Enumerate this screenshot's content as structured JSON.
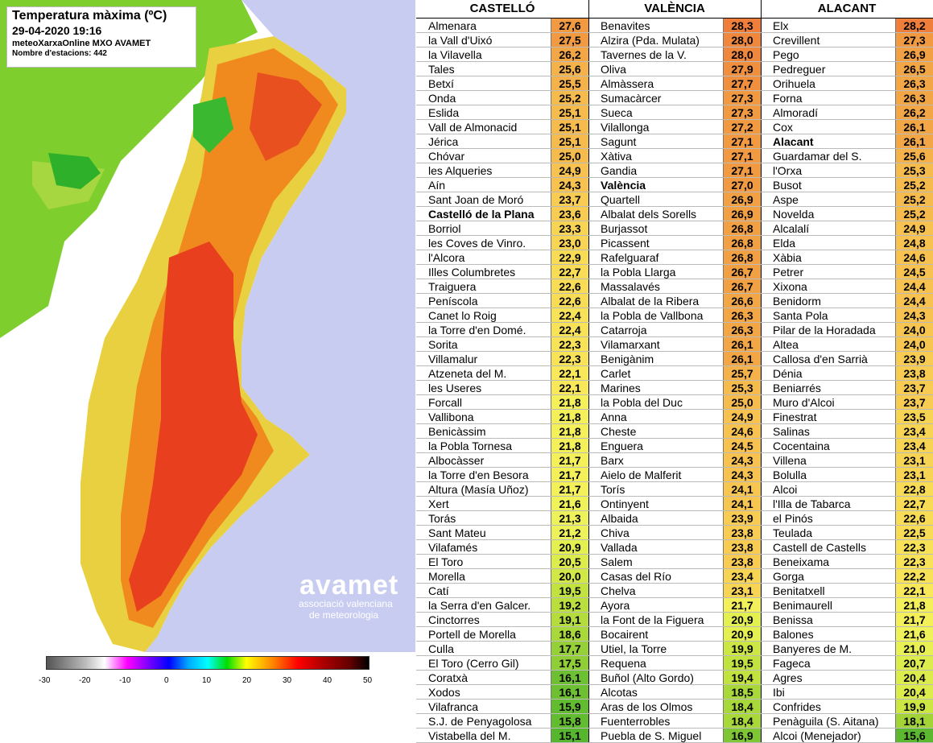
{
  "map": {
    "title": "Temperatura màxima (ºC)",
    "datetime": "29-04-2020 19:16",
    "source": "meteoXarxaOnline MXO AVAMET",
    "stations": "Nombre d'estacions: 442",
    "logo": {
      "word": "avamet",
      "sub1": "associació valenciana",
      "sub2": "de meteorologia"
    },
    "scale": {
      "ticks": [
        "-30",
        "-20",
        "-10",
        "0",
        "10",
        "20",
        "30",
        "40",
        "50"
      ]
    },
    "colors": {
      "hot": "#e8401e",
      "warm": "#f08a1e",
      "mild": "#f5c81e",
      "cool": "#8ed61e",
      "cold": "#22b022",
      "sea": "#c8ccf0"
    }
  },
  "table": {
    "columns": [
      {
        "header": "CASTELLÓ",
        "rows": [
          {
            "name": "Almenara",
            "value": "27,6",
            "color": "#f19a42"
          },
          {
            "name": "la Vall d'Uixó",
            "value": "27,5",
            "color": "#f19a42"
          },
          {
            "name": "la Vilavella",
            "value": "26,2",
            "color": "#f3a646"
          },
          {
            "name": "Tales",
            "value": "25,6",
            "color": "#f5b24a"
          },
          {
            "name": "Betxí",
            "value": "25,5",
            "color": "#f5b24a"
          },
          {
            "name": "Onda",
            "value": "25,2",
            "color": "#f6bb4d"
          },
          {
            "name": "Eslida",
            "value": "25,1",
            "color": "#f6bb4d"
          },
          {
            "name": "Vall de Almonacid",
            "value": "25,1",
            "color": "#f6bb4d"
          },
          {
            "name": "Jérica",
            "value": "25,1",
            "color": "#f6bb4d"
          },
          {
            "name": "Chóvar",
            "value": "25,0",
            "color": "#f6bb4d"
          },
          {
            "name": "les Alqueries",
            "value": "24,9",
            "color": "#f7c24f"
          },
          {
            "name": "Aín",
            "value": "24,3",
            "color": "#f7c24f"
          },
          {
            "name": "Sant Joan de Moró",
            "value": "23,7",
            "color": "#f8cc52"
          },
          {
            "name": "Castelló de la Plana",
            "value": "23,6",
            "color": "#f8cc52",
            "bold": true
          },
          {
            "name": "Borriol",
            "value": "23,3",
            "color": "#f8d455"
          },
          {
            "name": "les Coves de Vinro.",
            "value": "23,0",
            "color": "#f8d455"
          },
          {
            "name": "l'Alcora",
            "value": "22,9",
            "color": "#f8dc56"
          },
          {
            "name": "Illes Columbretes",
            "value": "22,7",
            "color": "#f8dc56"
          },
          {
            "name": "Traiguera",
            "value": "22,6",
            "color": "#f8dc56"
          },
          {
            "name": "Peníscola",
            "value": "22,6",
            "color": "#f8dc56"
          },
          {
            "name": "Canet lo Roig",
            "value": "22,4",
            "color": "#f8e258"
          },
          {
            "name": "la Torre d'en Domé.",
            "value": "22,4",
            "color": "#f8e258"
          },
          {
            "name": "Sorita",
            "value": "22,3",
            "color": "#f8e258"
          },
          {
            "name": "Villamalur",
            "value": "22,3",
            "color": "#f8e258"
          },
          {
            "name": "Atzeneta del M.",
            "value": "22,1",
            "color": "#f8e85a"
          },
          {
            "name": "les Useres",
            "value": "22,1",
            "color": "#f8e85a"
          },
          {
            "name": "Forcall",
            "value": "21,8",
            "color": "#f4f05a"
          },
          {
            "name": "Vallibona",
            "value": "21,8",
            "color": "#f4f05a"
          },
          {
            "name": "Benicàssim",
            "value": "21,8",
            "color": "#f4f05a"
          },
          {
            "name": "la Pobla Tornesa",
            "value": "21,8",
            "color": "#f4f05a"
          },
          {
            "name": "Albocàsser",
            "value": "21,7",
            "color": "#f4f05a"
          },
          {
            "name": "la Torre d'en Besora",
            "value": "21,7",
            "color": "#f4f05a"
          },
          {
            "name": "Altura (Masía Uñoz)",
            "value": "21,7",
            "color": "#f4f05a"
          },
          {
            "name": "Xert",
            "value": "21,6",
            "color": "#f0f25a"
          },
          {
            "name": "Torás",
            "value": "21,3",
            "color": "#eef25a"
          },
          {
            "name": "Sant Mateu",
            "value": "21,2",
            "color": "#eef25a"
          },
          {
            "name": "Vilafamés",
            "value": "20,9",
            "color": "#e4ef50"
          },
          {
            "name": "El Toro",
            "value": "20,5",
            "color": "#dcec4c"
          },
          {
            "name": "Morella",
            "value": "20,0",
            "color": "#d2e846"
          },
          {
            "name": "Catí",
            "value": "19,5",
            "color": "#c2e240"
          },
          {
            "name": "la Serra d'en Galcer.",
            "value": "19,2",
            "color": "#bade3e"
          },
          {
            "name": "Cinctorres",
            "value": "19,1",
            "color": "#b4dc3c"
          },
          {
            "name": "Portell de Morella",
            "value": "18,6",
            "color": "#a8d83a"
          },
          {
            "name": "Culla",
            "value": "17,7",
            "color": "#96d038"
          },
          {
            "name": "El Toro (Cerro Gil)",
            "value": "17,5",
            "color": "#90ce36"
          },
          {
            "name": "Coratxà",
            "value": "16,1",
            "color": "#6cc032"
          },
          {
            "name": "Xodos",
            "value": "16,1",
            "color": "#6cc032"
          },
          {
            "name": "Vilafranca",
            "value": "15,9",
            "color": "#62bc30"
          },
          {
            "name": "S.J. de Penyagolosa",
            "value": "15,8",
            "color": "#62bc30"
          },
          {
            "name": "Vistabella del M.",
            "value": "15,1",
            "color": "#56b62e"
          }
        ]
      },
      {
        "header": "VALÈNCIA",
        "rows": [
          {
            "name": "Benavites",
            "value": "28,3",
            "color": "#ee7e3a"
          },
          {
            "name": "Alzira (Pda. Mulata)",
            "value": "28,0",
            "color": "#ef873c"
          },
          {
            "name": "Tavernes de la V.",
            "value": "28,0",
            "color": "#ef873c"
          },
          {
            "name": "Oliva",
            "value": "27,9",
            "color": "#f0903e"
          },
          {
            "name": "Almàssera",
            "value": "27,7",
            "color": "#f0903e"
          },
          {
            "name": "Sumacàrcer",
            "value": "27,3",
            "color": "#f19a42"
          },
          {
            "name": "Sueca",
            "value": "27,3",
            "color": "#f19a42"
          },
          {
            "name": "Vilallonga",
            "value": "27,2",
            "color": "#f19a42"
          },
          {
            "name": "Sagunt",
            "value": "27,1",
            "color": "#f19a42"
          },
          {
            "name": "Xàtiva",
            "value": "27,1",
            "color": "#f19a42"
          },
          {
            "name": "Gandia",
            "value": "27,1",
            "color": "#f19a42"
          },
          {
            "name": "València",
            "value": "27,0",
            "color": "#f19a42",
            "bold": true
          },
          {
            "name": "Quartell",
            "value": "26,9",
            "color": "#f2a044"
          },
          {
            "name": "Albalat dels Sorells",
            "value": "26,9",
            "color": "#f2a044"
          },
          {
            "name": "Burjassot",
            "value": "26,8",
            "color": "#f2a044"
          },
          {
            "name": "Picassent",
            "value": "26,8",
            "color": "#f2a044"
          },
          {
            "name": "Rafelguaraf",
            "value": "26,8",
            "color": "#f2a044"
          },
          {
            "name": "la Pobla Llarga",
            "value": "26,7",
            "color": "#f2a044"
          },
          {
            "name": "Massalavés",
            "value": "26,7",
            "color": "#f2a044"
          },
          {
            "name": "Albalat de la Ribera",
            "value": "26,6",
            "color": "#f3a646"
          },
          {
            "name": "la Pobla de Vallbona",
            "value": "26,3",
            "color": "#f3a646"
          },
          {
            "name": "Catarroja",
            "value": "26,3",
            "color": "#f3a646"
          },
          {
            "name": "Vilamarxant",
            "value": "26,1",
            "color": "#f3a646"
          },
          {
            "name": "Benigànim",
            "value": "26,1",
            "color": "#f3a646"
          },
          {
            "name": "Carlet",
            "value": "25,7",
            "color": "#f5b24a"
          },
          {
            "name": "Marines",
            "value": "25,3",
            "color": "#f6bb4d"
          },
          {
            "name": "la Pobla del Duc",
            "value": "25,0",
            "color": "#f6bb4d"
          },
          {
            "name": "Anna",
            "value": "24,9",
            "color": "#f7c24f"
          },
          {
            "name": "Cheste",
            "value": "24,6",
            "color": "#f7c24f"
          },
          {
            "name": "Enguera",
            "value": "24,5",
            "color": "#f7c24f"
          },
          {
            "name": "Barx",
            "value": "24,3",
            "color": "#f7c24f"
          },
          {
            "name": "Aielo de Malferit",
            "value": "24,3",
            "color": "#f7c24f"
          },
          {
            "name": "Torís",
            "value": "24,1",
            "color": "#f7c651"
          },
          {
            "name": "Ontinyent",
            "value": "24,1",
            "color": "#f7c651"
          },
          {
            "name": "Albaida",
            "value": "23,9",
            "color": "#f8cc52"
          },
          {
            "name": "Chiva",
            "value": "23,8",
            "color": "#f8cc52"
          },
          {
            "name": "Vallada",
            "value": "23,8",
            "color": "#f8cc52"
          },
          {
            "name": "Salem",
            "value": "23,8",
            "color": "#f8cc52"
          },
          {
            "name": "Casas del Río",
            "value": "23,4",
            "color": "#f8d455"
          },
          {
            "name": "Chelva",
            "value": "23,1",
            "color": "#f8d455"
          },
          {
            "name": "Ayora",
            "value": "21,7",
            "color": "#f4f05a"
          },
          {
            "name": "la Font de la Figuera",
            "value": "20,9",
            "color": "#e4ef50"
          },
          {
            "name": "Bocairent",
            "value": "20,9",
            "color": "#e4ef50"
          },
          {
            "name": "Utiel, la Torre",
            "value": "19,9",
            "color": "#cce644"
          },
          {
            "name": "Requena",
            "value": "19,5",
            "color": "#c2e240"
          },
          {
            "name": "Buñol (Alto Gordo)",
            "value": "19,4",
            "color": "#c2e240"
          },
          {
            "name": "Alcotas",
            "value": "18,5",
            "color": "#a8d83a"
          },
          {
            "name": "Aras de los Olmos",
            "value": "18,4",
            "color": "#a8d83a"
          },
          {
            "name": "Fuenterrobles",
            "value": "18,4",
            "color": "#a8d83a"
          },
          {
            "name": "Puebla de S. Miguel",
            "value": "16,9",
            "color": "#7ec634"
          }
        ]
      },
      {
        "header": "ALACANT",
        "rows": [
          {
            "name": "Elx",
            "value": "28,2",
            "color": "#ee7e3a"
          },
          {
            "name": "Crevillent",
            "value": "27,3",
            "color": "#f19a42"
          },
          {
            "name": "Pego",
            "value": "26,9",
            "color": "#f2a044"
          },
          {
            "name": "Pedreguer",
            "value": "26,5",
            "color": "#f3a646"
          },
          {
            "name": "Orihuela",
            "value": "26,3",
            "color": "#f3a646"
          },
          {
            "name": "Forna",
            "value": "26,3",
            "color": "#f3a646"
          },
          {
            "name": "Almoradí",
            "value": "26,2",
            "color": "#f3a646"
          },
          {
            "name": "Cox",
            "value": "26,1",
            "color": "#f3a646"
          },
          {
            "name": "Alacant",
            "value": "26,1",
            "color": "#f3a646",
            "bold": true
          },
          {
            "name": "Guardamar del S.",
            "value": "25,6",
            "color": "#f5b24a"
          },
          {
            "name": "l'Orxa",
            "value": "25,3",
            "color": "#f6bb4d"
          },
          {
            "name": "Busot",
            "value": "25,2",
            "color": "#f6bb4d"
          },
          {
            "name": "Aspe",
            "value": "25,2",
            "color": "#f6bb4d"
          },
          {
            "name": "Novelda",
            "value": "25,2",
            "color": "#f6bb4d"
          },
          {
            "name": "Alcalalí",
            "value": "24,9",
            "color": "#f7c24f"
          },
          {
            "name": "Elda",
            "value": "24,8",
            "color": "#f7c24f"
          },
          {
            "name": "Xàbia",
            "value": "24,6",
            "color": "#f7c24f"
          },
          {
            "name": "Petrer",
            "value": "24,5",
            "color": "#f7c24f"
          },
          {
            "name": "Xixona",
            "value": "24,4",
            "color": "#f7c24f"
          },
          {
            "name": "Benidorm",
            "value": "24,4",
            "color": "#f7c24f"
          },
          {
            "name": "Santa Pola",
            "value": "24,3",
            "color": "#f7c24f"
          },
          {
            "name": "Pilar de la Horadada",
            "value": "24,0",
            "color": "#f7c651"
          },
          {
            "name": "Altea",
            "value": "24,0",
            "color": "#f7c651"
          },
          {
            "name": "Callosa d'en Sarrià",
            "value": "23,9",
            "color": "#f8cc52"
          },
          {
            "name": "Dénia",
            "value": "23,8",
            "color": "#f8cc52"
          },
          {
            "name": "Beniarrés",
            "value": "23,7",
            "color": "#f8cc52"
          },
          {
            "name": "Muro d'Alcoi",
            "value": "23,7",
            "color": "#f8cc52"
          },
          {
            "name": "Finestrat",
            "value": "23,5",
            "color": "#f8d455"
          },
          {
            "name": "Salinas",
            "value": "23,4",
            "color": "#f8d455"
          },
          {
            "name": "Cocentaina",
            "value": "23,4",
            "color": "#f8d455"
          },
          {
            "name": "Villena",
            "value": "23,1",
            "color": "#f8d455"
          },
          {
            "name": "Bolulla",
            "value": "23,1",
            "color": "#f8d455"
          },
          {
            "name": "Alcoi",
            "value": "22,8",
            "color": "#f8dc56"
          },
          {
            "name": "l'Illa de Tabarca",
            "value": "22,7",
            "color": "#f8dc56"
          },
          {
            "name": "el Pinós",
            "value": "22,6",
            "color": "#f8dc56"
          },
          {
            "name": "Teulada",
            "value": "22,5",
            "color": "#f8dc56"
          },
          {
            "name": "Castell de Castells",
            "value": "22,3",
            "color": "#f8e258"
          },
          {
            "name": "Beneixama",
            "value": "22,3",
            "color": "#f8e258"
          },
          {
            "name": "Gorga",
            "value": "22,2",
            "color": "#f8e258"
          },
          {
            "name": "Benitatxell",
            "value": "22,1",
            "color": "#f8e85a"
          },
          {
            "name": "Benimaurell",
            "value": "21,8",
            "color": "#f4f05a"
          },
          {
            "name": "Benissa",
            "value": "21,7",
            "color": "#f4f05a"
          },
          {
            "name": "Balones",
            "value": "21,6",
            "color": "#f0f25a"
          },
          {
            "name": "Banyeres de M.",
            "value": "21,0",
            "color": "#e8f054"
          },
          {
            "name": "Fageca",
            "value": "20,7",
            "color": "#dcec4c"
          },
          {
            "name": "Agres",
            "value": "20,4",
            "color": "#dcec4c"
          },
          {
            "name": "Ibi",
            "value": "20,4",
            "color": "#dcec4c"
          },
          {
            "name": "Confrides",
            "value": "19,9",
            "color": "#cce644"
          },
          {
            "name": "Penàguila (S. Aitana)",
            "value": "18,1",
            "color": "#a2d438"
          },
          {
            "name": "Alcoi (Menejador)",
            "value": "15,6",
            "color": "#5cb82e"
          }
        ]
      }
    ]
  }
}
